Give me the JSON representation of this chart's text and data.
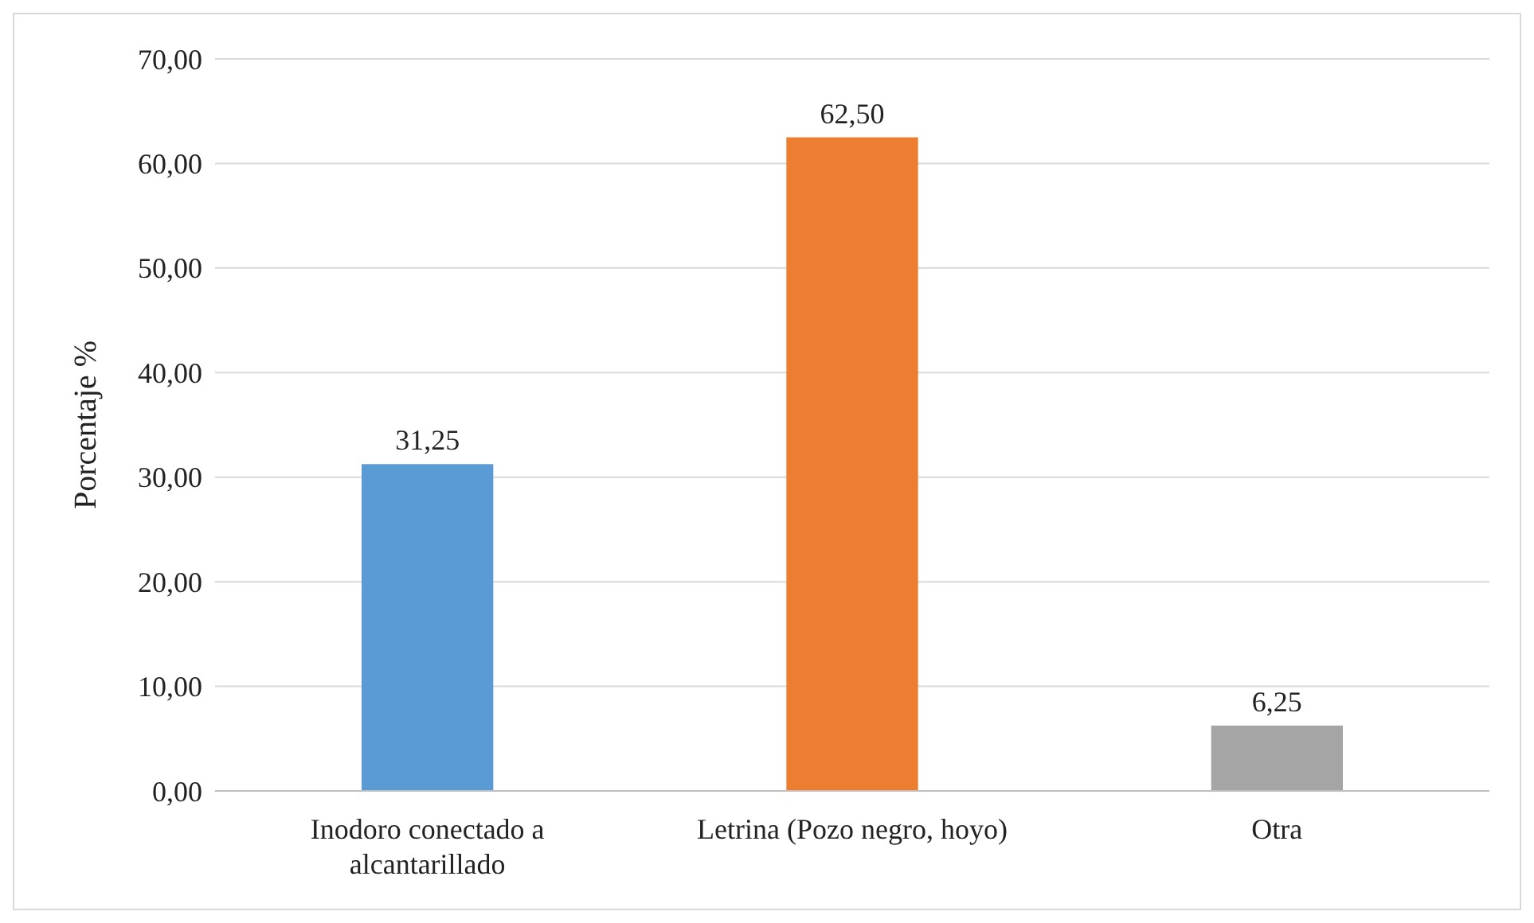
{
  "chart_data": {
    "type": "bar",
    "ylabel": "Porcentaje %",
    "categories": [
      "Inodoro conectado a alcantarillado",
      "Letrina (Pozo negro, hoyo)",
      "Otra"
    ],
    "values": [
      31.25,
      62.5,
      6.25
    ],
    "colors": [
      "#5b9bd5",
      "#ed7d31",
      "#a5a5a5"
    ],
    "value_labels": [
      "31,25",
      "62,50",
      "6,25"
    ],
    "ylim": [
      0,
      70
    ],
    "yticks": [
      {
        "value": 0,
        "label": "0,00"
      },
      {
        "value": 10,
        "label": "10,00"
      },
      {
        "value": 20,
        "label": "20,00"
      },
      {
        "value": 30,
        "label": "30,00"
      },
      {
        "value": 40,
        "label": "40,00"
      },
      {
        "value": 50,
        "label": "50,00"
      },
      {
        "value": 60,
        "label": "60,00"
      },
      {
        "value": 70,
        "label": "70,00"
      }
    ],
    "grid": "y"
  }
}
